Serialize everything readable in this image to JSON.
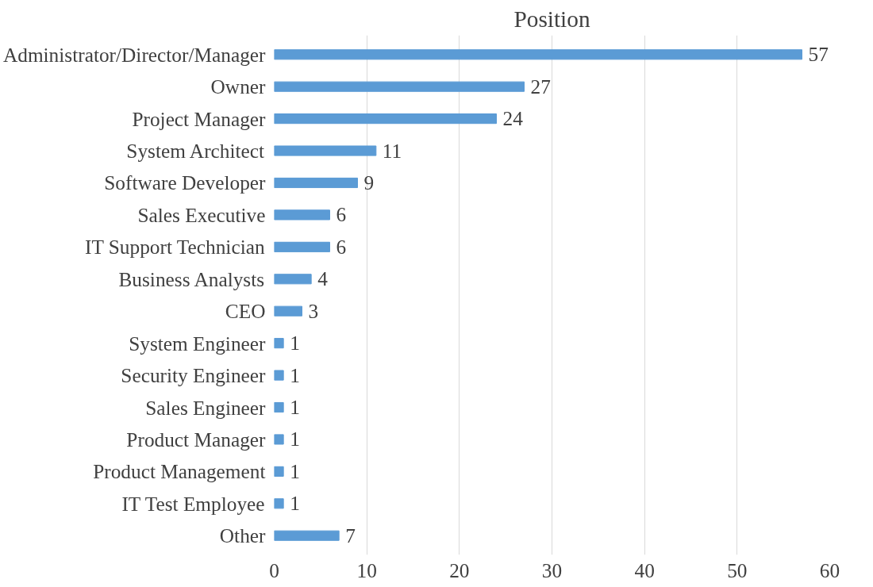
{
  "chart_data": {
    "type": "bar",
    "orientation": "horizontal",
    "title": "Position",
    "categories": [
      "Administrator/Director/Manager",
      "Owner",
      "Project Manager",
      "System Architect",
      "Software Developer",
      "Sales Executive",
      "IT Support Technician",
      "Business Analysts",
      "CEO",
      "System Engineer",
      "Security Engineer",
      "Sales Engineer",
      "Product Manager",
      "Product Management",
      "IT Test Employee",
      "Other"
    ],
    "values": [
      57,
      27,
      24,
      11,
      9,
      6,
      6,
      4,
      3,
      1,
      1,
      1,
      1,
      1,
      1,
      7
    ],
    "color": "#5b9bd5",
    "xlim": [
      0,
      60
    ],
    "xticks": [
      0,
      10,
      20,
      30,
      40,
      50,
      60
    ],
    "grid": "x",
    "data_labels": true
  }
}
